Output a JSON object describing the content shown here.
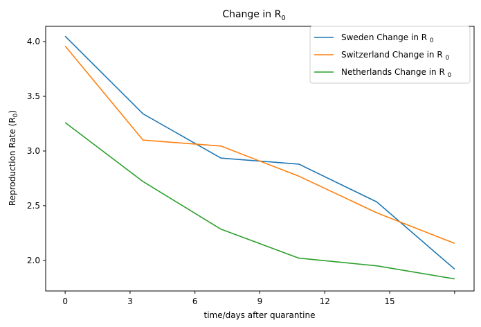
{
  "chart_data": {
    "type": "line",
    "title": "Change in R",
    "title_sub": "0",
    "xlabel": "time/days after quarantine",
    "ylabel": "Reproduction Rate (R",
    "ylabel_sub": "0",
    "ylabel_close": ")",
    "xlim": [
      -0.9,
      18.9
    ],
    "ylim": [
      1.72,
      4.14
    ],
    "xticks": [
      0,
      3,
      6,
      9,
      12,
      15,
      18
    ],
    "xtick_labels": [
      "0",
      "3",
      "6",
      "9",
      "12",
      "15",
      ""
    ],
    "yticks": [
      2.0,
      2.5,
      3.0,
      3.5,
      4.0
    ],
    "ytick_labels": [
      "2.0",
      "2.5",
      "3.0",
      "3.5",
      "4.0"
    ],
    "x": [
      0,
      3.6,
      7.2,
      10.8,
      14.4,
      18.0
    ],
    "grid": false,
    "legend_position": "top-right",
    "series": [
      {
        "name": "Sweden Change in R",
        "name_sub": "0",
        "color": "#1f77b4",
        "values": [
          4.05,
          3.34,
          2.935,
          2.88,
          2.535,
          1.92
        ]
      },
      {
        "name": "Switzerland Change in R",
        "name_sub": "0",
        "color": "#ff7f0e",
        "values": [
          3.96,
          3.1,
          3.045,
          2.77,
          2.435,
          2.155
        ]
      },
      {
        "name": "Netherlands Change in R",
        "name_sub": "0",
        "color": "#2ca02c",
        "values": [
          3.26,
          2.72,
          2.285,
          2.02,
          1.95,
          1.83
        ]
      }
    ]
  }
}
